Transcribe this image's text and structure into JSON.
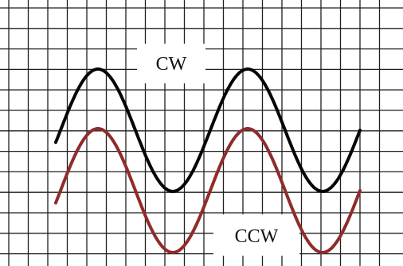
{
  "diagram": {
    "labels": {
      "cw": "CW",
      "ccw": "CCW"
    },
    "colors": {
      "background": "#ffffff",
      "grid": "#1f1f1f",
      "cw_wave": "#050505",
      "ccw_wave": "#8e2c2c",
      "label_background": "#ffffff"
    },
    "waves": [
      {
        "name": "cw",
        "cycles": 2,
        "phase": "sine"
      },
      {
        "name": "ccw",
        "cycles": 2,
        "phase": "sine"
      }
    ]
  }
}
